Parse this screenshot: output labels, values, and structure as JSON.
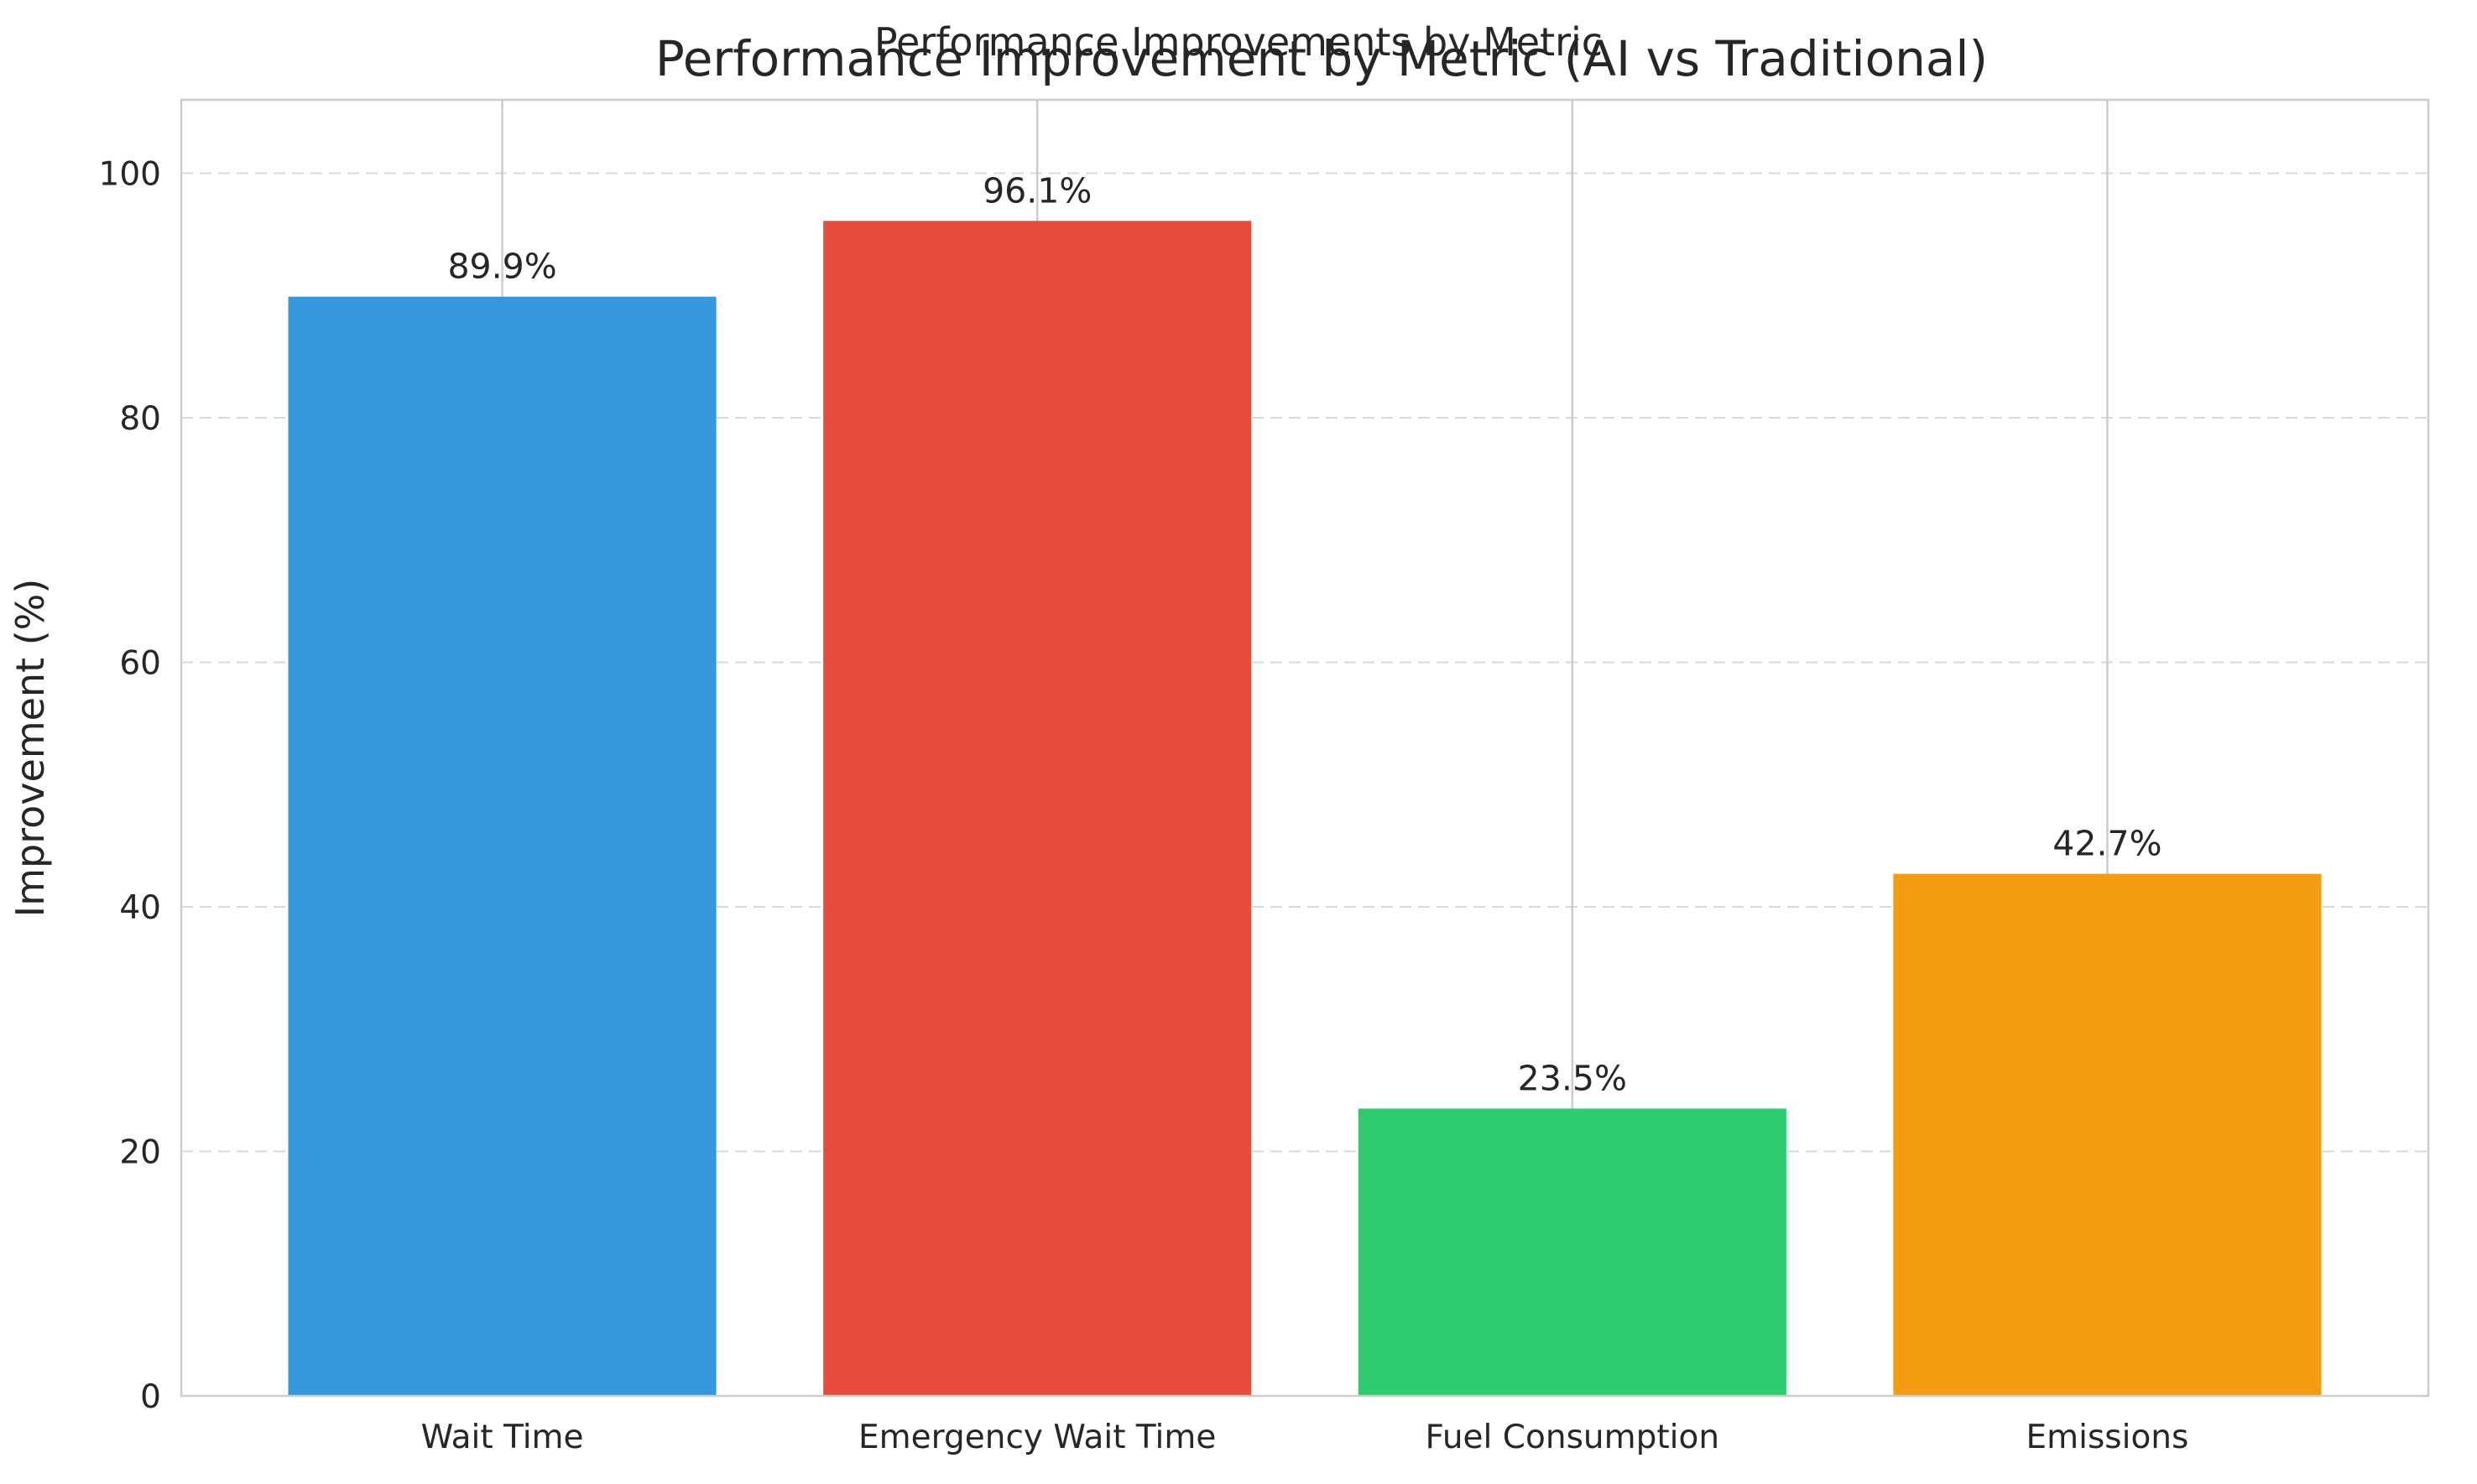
{
  "chart_data": {
    "type": "bar",
    "suptitle": "Performance Improvements by Metric",
    "title": "Performance Improvement by Metric (AI vs Traditional)",
    "xlabel": "",
    "ylabel": "Improvement (%)",
    "ylim": [
      0,
      106
    ],
    "yticks": [
      0,
      20,
      40,
      60,
      80,
      100
    ],
    "grid": "horizontal dashed, vertical at categories",
    "legend": "none",
    "categories": [
      "Wait Time",
      "Emergency Wait Time",
      "Fuel Consumption",
      "Emissions"
    ],
    "values": [
      89.9,
      96.1,
      23.5,
      42.7
    ],
    "value_labels": [
      "89.9%",
      "96.1%",
      "23.5%",
      "42.7%"
    ],
    "colors": [
      "#3498db",
      "#e74c3c",
      "#2ecc71",
      "#f39c12"
    ]
  }
}
